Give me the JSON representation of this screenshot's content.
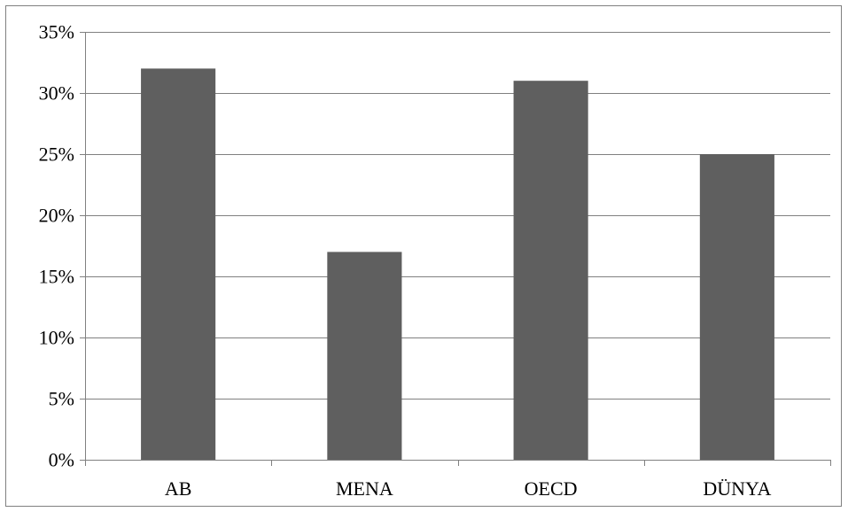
{
  "chart_data": {
    "type": "bar",
    "categories": [
      "AB",
      "MENA",
      "OECD",
      "DÜNYA"
    ],
    "values": [
      32,
      17,
      31,
      25
    ],
    "value_unit": "%",
    "ylim": [
      0,
      35
    ],
    "yticks": [
      0,
      5,
      10,
      15,
      20,
      25,
      30,
      35
    ],
    "ytick_labels": [
      "0%",
      "5%",
      "10%",
      "15%",
      "20%",
      "25%",
      "30%",
      "35%"
    ],
    "title": "",
    "xlabel": "",
    "ylabel": "",
    "grid": true,
    "legend": "none",
    "bar_color": "#5f5f5f",
    "grid_color": "#808080"
  }
}
